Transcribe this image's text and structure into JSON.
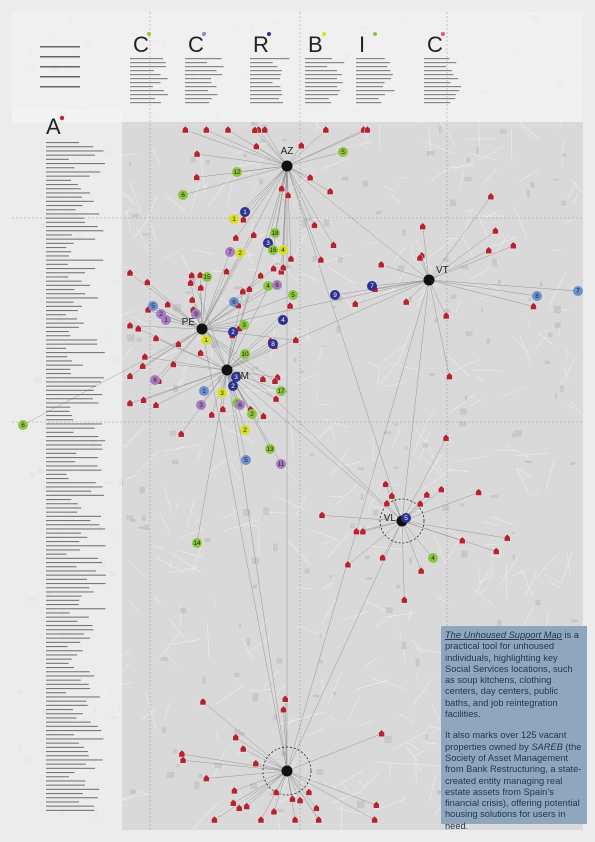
{
  "header": {
    "letters": [
      {
        "letter": "C",
        "color": "#8cc63f"
      },
      {
        "letter": "C",
        "color": "#a87cc0"
      },
      {
        "letter": "R",
        "color": "#2e3192"
      },
      {
        "letter": "B",
        "color": "#d9e021"
      },
      {
        "letter": "I",
        "color": "#8cc63f"
      },
      {
        "letter": "C",
        "color": "#e05a7a"
      }
    ]
  },
  "section": {
    "letter": "A",
    "color": "#c1272d"
  },
  "hubs": [
    {
      "label": "AZ"
    },
    {
      "label": "VT"
    },
    {
      "label": "PE"
    },
    {
      "label": "PM"
    },
    {
      "label": "VL"
    },
    {
      "label": null
    }
  ],
  "markers": [
    {
      "label": "5",
      "color": "#8cc63f"
    },
    {
      "label": "12",
      "color": "#8cc63f"
    },
    {
      "label": "6",
      "color": "#8cc63f"
    },
    {
      "label": "1",
      "color": "#2e3192"
    },
    {
      "label": "1",
      "color": "#d9e021"
    },
    {
      "label": "2",
      "color": "#d9e021"
    },
    {
      "label": "7",
      "color": "#a87cc0"
    },
    {
      "label": "18",
      "color": "#8cc63f"
    },
    {
      "label": "3",
      "color": "#2e3192"
    },
    {
      "label": "16",
      "color": "#8cc63f"
    },
    {
      "label": "4",
      "color": "#d9e021"
    },
    {
      "label": "15",
      "color": "#8cc63f"
    },
    {
      "label": "4",
      "color": "#8cc63f"
    },
    {
      "label": "6",
      "color": "#a87cc0"
    },
    {
      "label": "5",
      "color": "#8cc63f"
    },
    {
      "label": "9",
      "color": "#2e3192"
    },
    {
      "label": "7",
      "color": "#2e3192"
    },
    {
      "label": "8",
      "color": "#6d8fd0"
    },
    {
      "label": "7",
      "color": "#6d8fd0"
    },
    {
      "label": "5",
      "color": "#6d8fd0"
    },
    {
      "label": "2",
      "color": "#a87cc0"
    },
    {
      "label": "1",
      "color": "#a87cc0"
    },
    {
      "label": "6",
      "color": "#6d8fd0"
    },
    {
      "label": "9",
      "color": "#a87cc0"
    },
    {
      "label": "4",
      "color": "#2e3192"
    },
    {
      "label": "8",
      "color": "#2e3192"
    },
    {
      "label": "3",
      "color": "#8cc63f"
    },
    {
      "label": "2",
      "color": "#2e3192"
    },
    {
      "label": "1",
      "color": "#d9e021"
    },
    {
      "label": "10",
      "color": "#8cc63f"
    },
    {
      "label": "6",
      "color": "#a87cc0"
    },
    {
      "label": "3",
      "color": "#2e3192"
    },
    {
      "label": "2",
      "color": "#2e3192"
    },
    {
      "label": "1",
      "color": "#6d8fd0"
    },
    {
      "label": "3",
      "color": "#a87cc0"
    },
    {
      "label": "3",
      "color": "#d9e021"
    },
    {
      "label": "3",
      "color": "#8cc63f"
    },
    {
      "label": "6",
      "color": "#a87cc0"
    },
    {
      "label": "17",
      "color": "#8cc63f"
    },
    {
      "label": "2",
      "color": "#8cc63f"
    },
    {
      "label": "2",
      "color": "#d9e021"
    },
    {
      "label": "13",
      "color": "#8cc63f"
    },
    {
      "label": "5",
      "color": "#6d8fd0"
    },
    {
      "label": "11",
      "color": "#a87cc0"
    },
    {
      "label": "14",
      "color": "#8cc63f"
    },
    {
      "label": "4",
      "color": "#8cc63f"
    },
    {
      "label": "5",
      "color": "#2e3192"
    },
    {
      "label": "6",
      "color": "#8cc63f"
    }
  ],
  "description": {
    "paragraphs": [
      {
        "title": "The Unhoused Support Map",
        "text": " is a practical tool for unhoused individuals, highlighting key Social Services locations, such as soup kitchens, clothing centers, day centers, public baths, and job reintegration facilities."
      },
      {
        "before": "It also marks over 125 vacant properties owned by ",
        "italic": "SAREB",
        "text": " (the Society of Asset Management from Bank Restructuring, a state-created entity managing real estate assets from Spain’s financial crisis), offering potential housing solutions for users in need."
      }
    ]
  }
}
